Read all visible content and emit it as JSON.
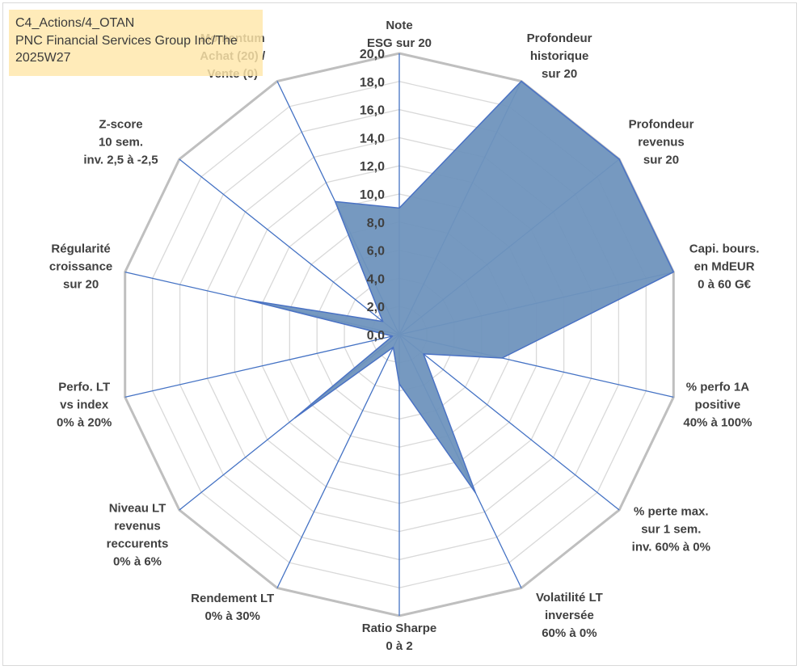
{
  "title": {
    "line1": "C4_Actions/4_OTAN",
    "line2": "PNC Financial Services Group Inc/The",
    "line3": "2025W27"
  },
  "colors": {
    "fill": "#6f93bd",
    "fill_stroke": "#4a72c4",
    "spoke": "#4472c4",
    "ring_outer": "#bfbfbf",
    "ring_inner": "#d9d9d9",
    "title_bg": "#ffe6aa"
  },
  "chart_data": {
    "type": "radar",
    "rmin": 0,
    "rmax": 20,
    "ticks": [
      "0,0",
      "2,0",
      "4,0",
      "6,0",
      "8,0",
      "10,0",
      "12,0",
      "14,0",
      "16,0",
      "18,0",
      "20,0"
    ],
    "grid": true,
    "axes": [
      {
        "label": [
          "Note",
          "ESG sur 20"
        ],
        "value": 9.0
      },
      {
        "label": [
          "Profondeur",
          "historique",
          "sur 20"
        ],
        "value": 20.0
      },
      {
        "label": [
          "Profondeur",
          "revenus",
          "sur 20"
        ],
        "value": 20.0
      },
      {
        "label": [
          "Capi. bours.",
          "en MdEUR",
          "0 à 60 G€"
        ],
        "value": 20.0
      },
      {
        "label": [
          "% perfo 1A",
          "positive",
          "40% à 100%"
        ],
        "value": 7.5
      },
      {
        "label": [
          "% perte max.",
          "sur 1 sem.",
          "inv. 60% à 0%"
        ],
        "value": 2.2
      },
      {
        "label": [
          "Volatilité LT",
          "inversée",
          "60% à 0%"
        ],
        "value": 12.5
      },
      {
        "label": [
          "Ratio Sharpe",
          "0 à 2"
        ],
        "value": 3.5
      },
      {
        "label": [
          "Rendement LT",
          "0% à 30%"
        ],
        "value": 1.0
      },
      {
        "label": [
          "Niveau LT",
          "revenus",
          "reccurents",
          "0% à 6%"
        ],
        "value": 9.5
      },
      {
        "label": [
          "Perfo. LT",
          "vs index",
          "0% à 20%"
        ],
        "value": 0.5
      },
      {
        "label": [
          "Régularité",
          "croissance",
          "sur 20"
        ],
        "value": 11.0
      },
      {
        "label": [
          "Z-score",
          "10 sem.",
          "inv. 2,5 à -2,5"
        ],
        "value": 1.5
      },
      {
        "label": [
          "Momentum",
          "Achat (20) /",
          "Vente (0)"
        ],
        "value": 10.5
      }
    ]
  }
}
